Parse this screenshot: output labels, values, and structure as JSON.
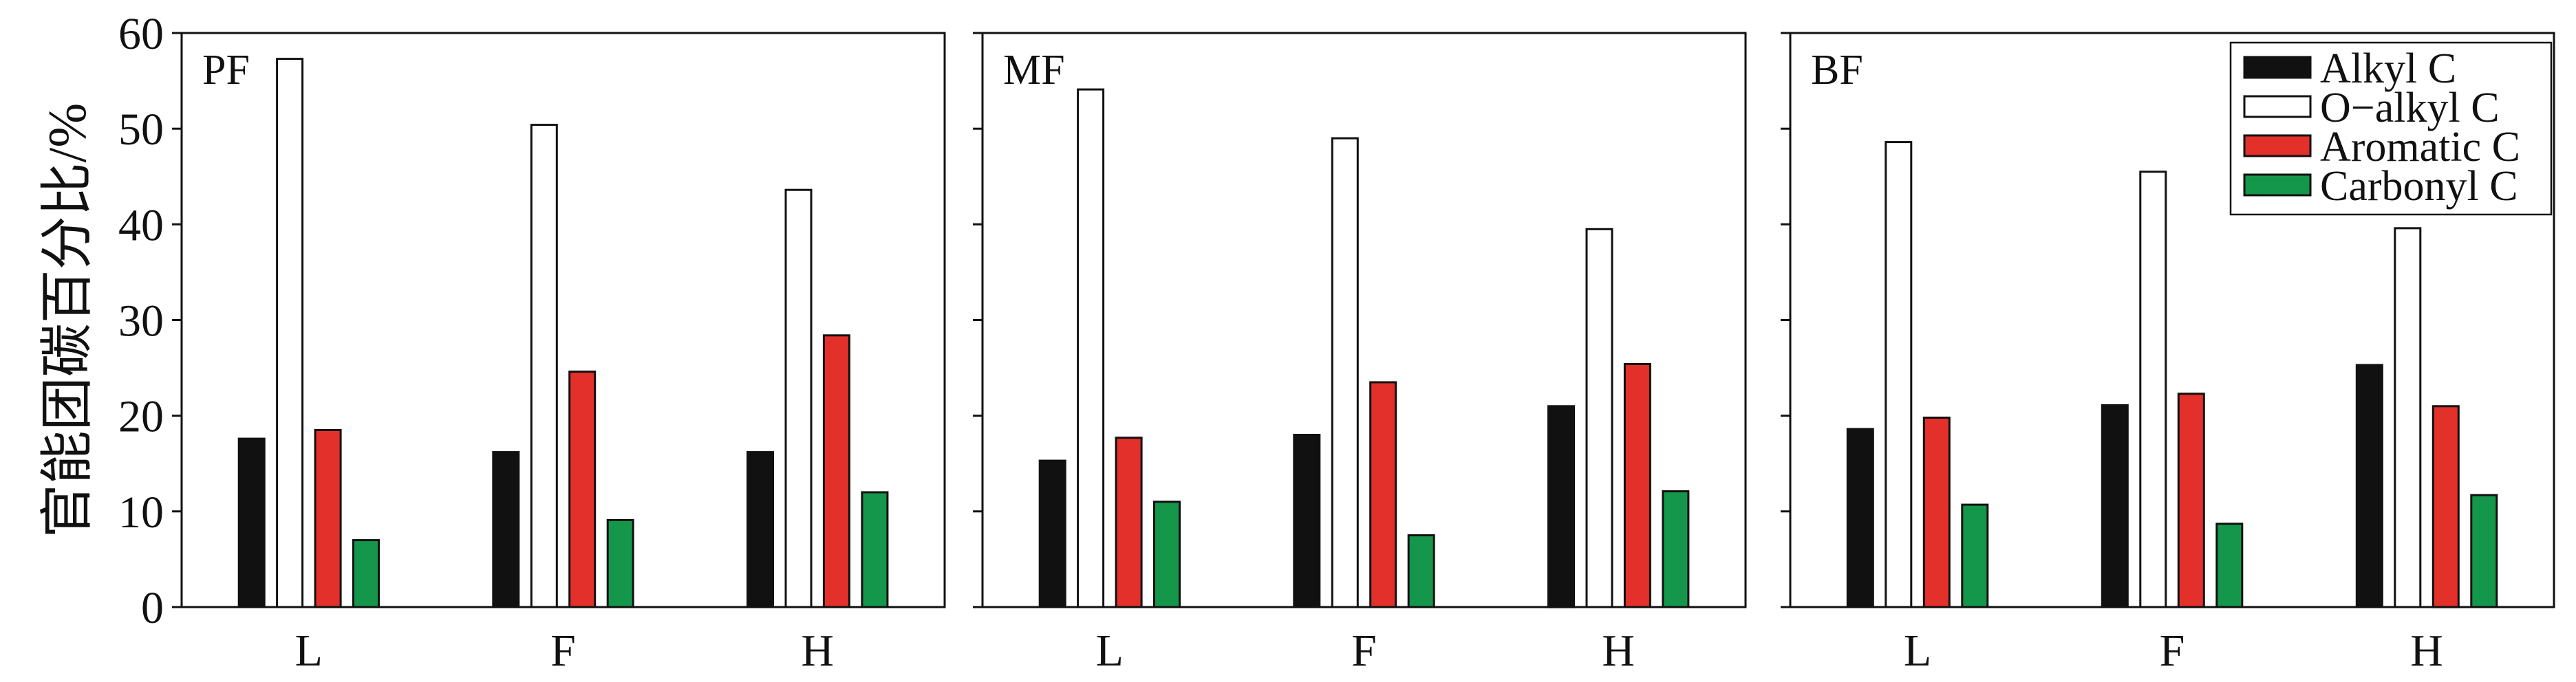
{
  "chart_data": {
    "type": "bar",
    "ylabel": "官能团碳百分比/%",
    "ylim": [
      0,
      60
    ],
    "yticks": [
      0,
      10,
      20,
      30,
      40,
      50,
      60
    ],
    "categories": [
      "L",
      "F",
      "H"
    ],
    "grid": false,
    "legend": "top-right",
    "series": [
      {
        "name": "Alkyl C",
        "color": "#111111"
      },
      {
        "name": "O−alkyl C",
        "color": "#ffffff"
      },
      {
        "name": "Aromatic C",
        "color": "#e3302b"
      },
      {
        "name": "Carbonyl C",
        "color": "#14974a"
      }
    ],
    "panels": [
      {
        "label": "PF",
        "values": [
          [
            17.6,
            16.2,
            16.2
          ],
          [
            57.3,
            50.4,
            43.6
          ],
          [
            18.5,
            24.6,
            28.4
          ],
          [
            7.0,
            9.1,
            12.0
          ]
        ]
      },
      {
        "label": "MF",
        "values": [
          [
            15.3,
            18.0,
            21.0
          ],
          [
            54.1,
            49.0,
            39.5
          ],
          [
            17.7,
            23.5,
            25.4
          ],
          [
            11.0,
            7.5,
            12.1
          ]
        ]
      },
      {
        "label": "BF",
        "values": [
          [
            18.6,
            21.1,
            25.3
          ],
          [
            48.6,
            45.5,
            39.6
          ],
          [
            19.8,
            22.3,
            21.0
          ],
          [
            10.7,
            8.7,
            11.7
          ]
        ]
      }
    ]
  }
}
